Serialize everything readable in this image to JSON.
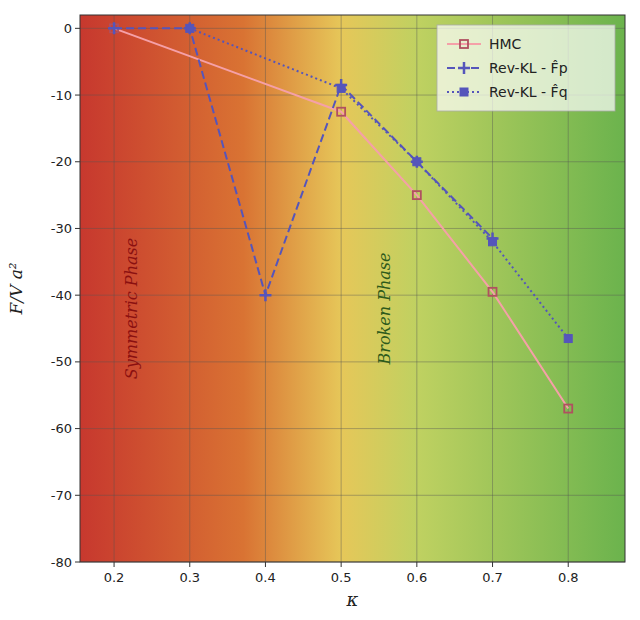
{
  "chart_data": {
    "type": "line",
    "xlabel": "κ",
    "ylabel": "F/V a²",
    "xlim": [
      0.155,
      0.875
    ],
    "ylim": [
      -80,
      2
    ],
    "xticks": [
      0.2,
      0.3,
      0.4,
      0.5,
      0.6,
      0.7,
      0.8
    ],
    "yticks": [
      0,
      -10,
      -20,
      -30,
      -40,
      -50,
      -60,
      -70,
      -80
    ],
    "grid": true,
    "legend": "upper right",
    "series": [
      {
        "name": "HMC",
        "color": "#f5a0a8",
        "marker": "open-square",
        "line_style": "solid",
        "x": [
          0.2,
          0.5,
          0.6,
          0.7,
          0.8
        ],
        "values": [
          0.0,
          -12.5,
          -25.0,
          -39.5,
          -57.0
        ]
      },
      {
        "name": "Rev-KL - F̂p",
        "color": "#5555bb",
        "marker": "plus",
        "line_style": "dashed",
        "x": [
          0.2,
          0.3,
          0.4,
          0.5,
          0.6,
          0.7
        ],
        "values": [
          0.0,
          0.0,
          -40.0,
          -8.5,
          -20.0,
          -31.5
        ]
      },
      {
        "name": "Rev-KL - F̂q",
        "color": "#5555bb",
        "marker": "square",
        "line_style": "dotted",
        "x": [
          0.3,
          0.5,
          0.6,
          0.7,
          0.8
        ],
        "values": [
          0.0,
          -9.0,
          -20.0,
          -32.0,
          -46.5
        ]
      }
    ],
    "annotations": [
      {
        "text": "Symmetric Phase",
        "x": 0.225,
        "y": -42,
        "color": "#8b1010"
      },
      {
        "text": "Broken Phase",
        "x": 0.558,
        "y": -42,
        "color": "#2d5a1b"
      }
    ]
  }
}
